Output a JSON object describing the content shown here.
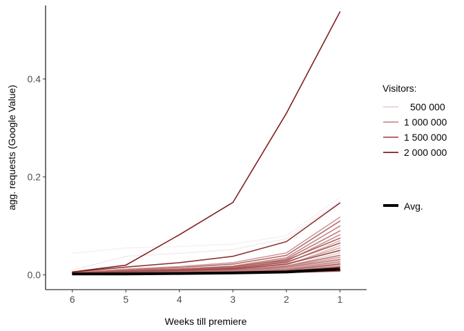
{
  "chart_data": {
    "type": "line",
    "xlabel": "Weeks till premiere",
    "ylabel": "agg. requests (Google Value)",
    "x": [
      6,
      5,
      4,
      3,
      2,
      1
    ],
    "x_ticks": [
      "6",
      "5",
      "4",
      "3",
      "2",
      "1"
    ],
    "x_reversed": true,
    "y_ticks": [
      "0.0",
      "0.2",
      "0.4"
    ],
    "ylim": [
      -0.03,
      0.55
    ],
    "grid": false,
    "legend": {
      "title": "Visitors:",
      "position": "right",
      "entries": [
        "500 000",
        "1 000 000",
        "1 500 000",
        "2 000 000"
      ],
      "avg_label": "Avg."
    },
    "color_scale": {
      "500000": "#e6d0d0",
      "1000000": "#c98f8f",
      "1500000": "#a85555",
      "2000000": "#7f1d1d",
      "avg": "#000000"
    },
    "series": [
      {
        "visitors": 2000000,
        "values": [
          0.006,
          0.02,
          0.082,
          0.148,
          0.33,
          0.537
        ]
      },
      {
        "visitors": 1800000,
        "values": [
          0.006,
          0.016,
          0.025,
          0.038,
          0.068,
          0.147
        ]
      },
      {
        "visitors": 150000,
        "values": [
          0.044,
          0.055,
          0.058,
          0.063,
          0.08,
          0.158
        ]
      },
      {
        "visitors": 200000,
        "values": [
          0.01,
          0.038,
          0.044,
          0.052,
          0.074,
          0.15
        ]
      },
      {
        "visitors": 900000,
        "values": [
          0.005,
          0.012,
          0.017,
          0.025,
          0.045,
          0.118
        ]
      },
      {
        "visitors": 1300000,
        "values": [
          0.004,
          0.01,
          0.015,
          0.022,
          0.04,
          0.11
        ]
      },
      {
        "visitors": 1100000,
        "values": [
          0.004,
          0.009,
          0.012,
          0.018,
          0.035,
          0.1
        ]
      },
      {
        "visitors": 1200000,
        "values": [
          0.003,
          0.008,
          0.011,
          0.016,
          0.032,
          0.09
        ]
      },
      {
        "visitors": 1000000,
        "values": [
          0.003,
          0.007,
          0.01,
          0.014,
          0.028,
          0.082
        ]
      },
      {
        "visitors": 1400000,
        "values": [
          0.004,
          0.008,
          0.012,
          0.017,
          0.03,
          0.075
        ]
      },
      {
        "visitors": 700000,
        "values": [
          0.003,
          0.006,
          0.009,
          0.012,
          0.024,
          0.07
        ]
      },
      {
        "visitors": 1500000,
        "values": [
          0.003,
          0.007,
          0.01,
          0.014,
          0.026,
          0.065
        ]
      },
      {
        "visitors": 600000,
        "values": [
          0.002,
          0.005,
          0.007,
          0.01,
          0.02,
          0.06
        ]
      },
      {
        "visitors": 800000,
        "values": [
          0.002,
          0.005,
          0.008,
          0.011,
          0.022,
          0.055
        ]
      },
      {
        "visitors": 1600000,
        "values": [
          0.003,
          0.006,
          0.009,
          0.012,
          0.022,
          0.05
        ]
      },
      {
        "visitors": 500000,
        "values": [
          0.002,
          0.004,
          0.006,
          0.009,
          0.018,
          0.045
        ]
      },
      {
        "visitors": 1250000,
        "values": [
          0.002,
          0.005,
          0.007,
          0.01,
          0.018,
          0.04
        ]
      },
      {
        "visitors": 950000,
        "values": [
          0.002,
          0.004,
          0.006,
          0.008,
          0.016,
          0.036
        ]
      },
      {
        "visitors": 1150000,
        "values": [
          0.002,
          0.004,
          0.006,
          0.008,
          0.015,
          0.032
        ]
      },
      {
        "visitors": 650000,
        "values": [
          0.001,
          0.003,
          0.005,
          0.007,
          0.013,
          0.03
        ]
      },
      {
        "visitors": 1050000,
        "values": [
          0.002,
          0.004,
          0.005,
          0.007,
          0.012,
          0.027
        ]
      },
      {
        "visitors": 750000,
        "values": [
          0.001,
          0.003,
          0.004,
          0.006,
          0.011,
          0.024
        ]
      },
      {
        "visitors": 1350000,
        "values": [
          0.002,
          0.003,
          0.005,
          0.006,
          0.01,
          0.022
        ]
      },
      {
        "visitors": 550000,
        "values": [
          0.001,
          0.002,
          0.004,
          0.005,
          0.009,
          0.02
        ]
      },
      {
        "visitors": 850000,
        "values": [
          0.001,
          0.003,
          0.004,
          0.005,
          0.009,
          0.018
        ]
      },
      {
        "visitors": 1700000,
        "values": [
          0.002,
          0.003,
          0.004,
          0.005,
          0.008,
          0.016
        ]
      },
      {
        "visitors": 450000,
        "values": [
          0.001,
          0.002,
          0.003,
          0.004,
          0.007,
          0.014
        ]
      },
      {
        "visitors": 1450000,
        "values": [
          0.001,
          0.002,
          0.003,
          0.004,
          0.007,
          0.012
        ]
      },
      {
        "visitors": 400000,
        "values": [
          0.001,
          0.002,
          0.003,
          0.004,
          0.006,
          0.011
        ]
      },
      {
        "visitors": 300000,
        "values": [
          0.001,
          0.002,
          0.002,
          0.003,
          0.005,
          0.009
        ]
      },
      {
        "visitors": 1900000,
        "values": [
          0.001,
          0.002,
          0.003,
          0.004,
          0.006,
          0.01
        ]
      },
      {
        "visitors": 350000,
        "values": [
          0.001,
          0.001,
          0.002,
          0.003,
          0.004,
          0.008
        ]
      },
      {
        "visitors": 1750000,
        "values": [
          0.001,
          0.002,
          0.002,
          0.003,
          0.005,
          0.008
        ]
      },
      {
        "visitors": 250000,
        "values": [
          0.001,
          0.001,
          0.002,
          0.002,
          0.004,
          0.006
        ]
      }
    ],
    "average": {
      "name": "Avg.",
      "values": [
        0.002,
        0.002,
        0.003,
        0.004,
        0.006,
        0.012
      ]
    }
  }
}
